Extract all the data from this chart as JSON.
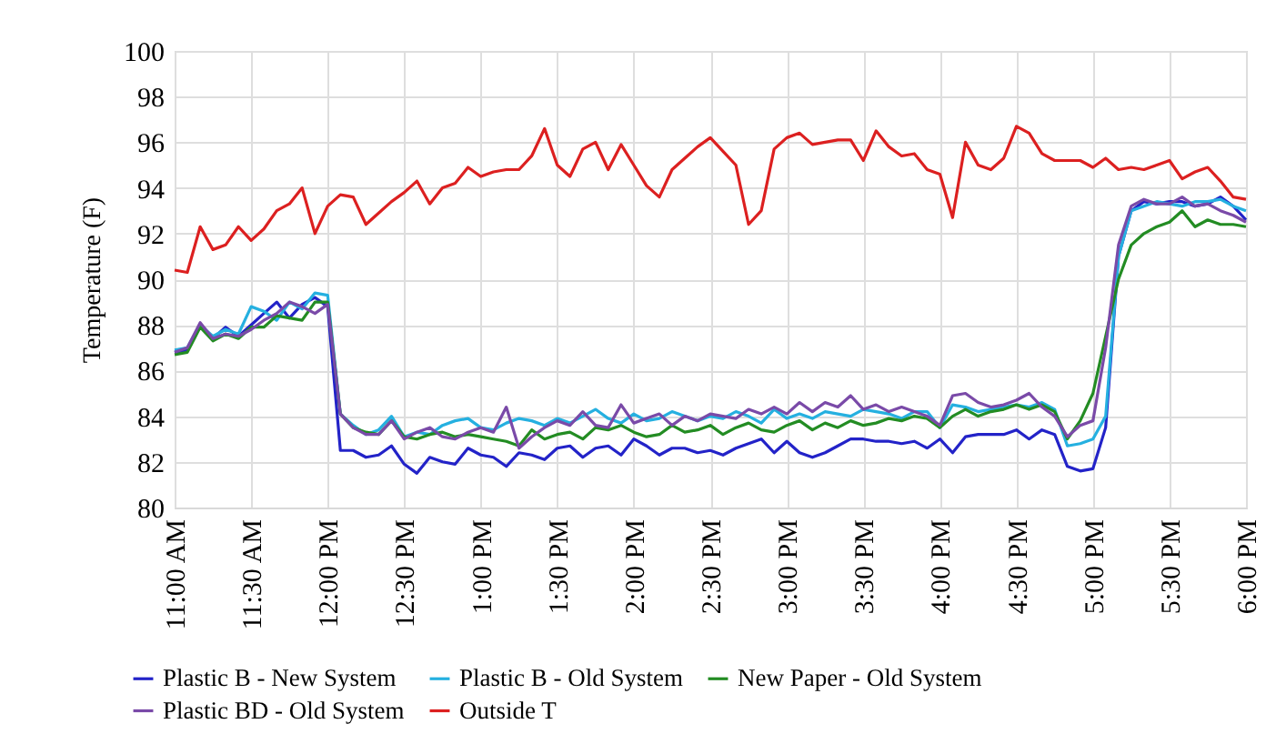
{
  "chart_data": {
    "type": "line",
    "ylabel": "Temperature (F)",
    "x": [
      11,
      11.083,
      11.167,
      11.25,
      11.333,
      11.417,
      11.5,
      11.583,
      11.667,
      11.75,
      11.833,
      11.917,
      12,
      12.083,
      12.167,
      12.25,
      12.333,
      12.417,
      12.5,
      12.583,
      12.667,
      12.75,
      12.833,
      12.917,
      13,
      13.083,
      13.167,
      13.25,
      13.333,
      13.417,
      13.5,
      13.583,
      13.667,
      13.75,
      13.833,
      13.917,
      14,
      14.083,
      14.167,
      14.25,
      14.333,
      14.417,
      14.5,
      14.583,
      14.667,
      14.75,
      14.833,
      14.917,
      15,
      15.083,
      15.167,
      15.25,
      15.333,
      15.417,
      15.5,
      15.583,
      15.667,
      15.75,
      15.833,
      15.917,
      16,
      16.083,
      16.167,
      16.25,
      16.333,
      16.417,
      16.5,
      16.583,
      16.667,
      16.75,
      16.833,
      16.917,
      17,
      17.083,
      17.167,
      17.25,
      17.333,
      17.417,
      17.5,
      17.583,
      17.667,
      17.75,
      17.833,
      17.917,
      18
    ],
    "series": [
      {
        "name": "Plastic B - New System",
        "color": "#2323c8",
        "values": [
          86.8,
          86.9,
          88.0,
          87.4,
          87.9,
          87.5,
          88.0,
          88.5,
          89.0,
          88.3,
          88.9,
          89.2,
          88.8,
          82.5,
          82.5,
          82.2,
          82.3,
          82.7,
          81.9,
          81.5,
          82.2,
          82.0,
          81.9,
          82.6,
          82.3,
          82.2,
          81.8,
          82.4,
          82.3,
          82.1,
          82.6,
          82.7,
          82.2,
          82.6,
          82.7,
          82.3,
          83.0,
          82.7,
          82.3,
          82.6,
          82.6,
          82.4,
          82.5,
          82.3,
          82.6,
          82.8,
          83.0,
          82.4,
          82.9,
          82.4,
          82.2,
          82.4,
          82.7,
          83.0,
          83.0,
          82.9,
          82.9,
          82.8,
          82.9,
          82.6,
          83.0,
          82.4,
          83.1,
          83.2,
          83.2,
          83.2,
          83.4,
          83.0,
          83.4,
          83.2,
          81.8,
          81.6,
          81.7,
          83.5,
          91.0,
          93.0,
          93.4,
          93.3,
          93.4,
          93.4,
          93.2,
          93.3,
          93.6,
          93.2,
          92.6
        ]
      },
      {
        "name": "Plastic B - Old System",
        "color": "#25b0e0",
        "values": [
          86.9,
          87.0,
          88.0,
          87.5,
          87.8,
          87.6,
          88.8,
          88.6,
          88.2,
          89.0,
          88.7,
          89.4,
          89.3,
          84.1,
          83.6,
          83.2,
          83.4,
          84.0,
          83.1,
          83.3,
          83.2,
          83.6,
          83.8,
          83.9,
          83.5,
          83.4,
          83.7,
          83.9,
          83.8,
          83.6,
          83.9,
          83.7,
          84.0,
          84.3,
          83.9,
          83.7,
          84.1,
          83.8,
          83.9,
          84.2,
          84.0,
          83.8,
          84.0,
          83.9,
          84.2,
          84.0,
          83.7,
          84.3,
          83.9,
          84.1,
          83.9,
          84.2,
          84.1,
          84.0,
          84.3,
          84.2,
          84.1,
          83.9,
          84.2,
          84.2,
          83.5,
          84.5,
          84.4,
          84.2,
          84.3,
          84.4,
          84.5,
          84.4,
          84.6,
          84.3,
          82.7,
          82.8,
          83.0,
          84.0,
          91.0,
          93.0,
          93.2,
          93.4,
          93.3,
          93.2,
          93.4,
          93.4,
          93.5,
          93.2,
          93.0
        ]
      },
      {
        "name": "New Paper - Old System",
        "color": "#238c23",
        "values": [
          86.7,
          86.8,
          87.9,
          87.3,
          87.6,
          87.4,
          87.9,
          87.9,
          88.4,
          88.3,
          88.2,
          89.0,
          89.0,
          84.1,
          83.5,
          83.3,
          83.2,
          83.8,
          83.1,
          83.0,
          83.2,
          83.3,
          83.1,
          83.2,
          83.1,
          83.0,
          82.9,
          82.7,
          83.4,
          83.0,
          83.2,
          83.3,
          83.0,
          83.5,
          83.4,
          83.6,
          83.3,
          83.1,
          83.2,
          83.6,
          83.3,
          83.4,
          83.6,
          83.2,
          83.5,
          83.7,
          83.4,
          83.3,
          83.6,
          83.8,
          83.4,
          83.7,
          83.5,
          83.8,
          83.6,
          83.7,
          83.9,
          83.8,
          84.0,
          83.9,
          83.5,
          84.0,
          84.3,
          84.0,
          84.2,
          84.3,
          84.5,
          84.3,
          84.5,
          84.2,
          83.0,
          83.8,
          85.0,
          87.5,
          90.0,
          91.5,
          92.0,
          92.3,
          92.5,
          93.0,
          92.3,
          92.6,
          92.4,
          92.4,
          92.3
        ]
      },
      {
        "name": "Plastic BD - Old System",
        "color": "#7a4aa8",
        "values": [
          86.8,
          87.0,
          88.1,
          87.4,
          87.6,
          87.5,
          87.8,
          88.2,
          88.5,
          89.0,
          88.8,
          88.5,
          88.9,
          84.1,
          83.5,
          83.2,
          83.2,
          83.8,
          83.0,
          83.3,
          83.5,
          83.1,
          83.0,
          83.3,
          83.5,
          83.3,
          84.4,
          82.6,
          83.1,
          83.5,
          83.8,
          83.6,
          84.2,
          83.6,
          83.5,
          84.5,
          83.7,
          83.9,
          84.1,
          83.6,
          84.0,
          83.8,
          84.1,
          84.0,
          83.9,
          84.3,
          84.1,
          84.4,
          84.1,
          84.6,
          84.2,
          84.6,
          84.4,
          84.9,
          84.3,
          84.5,
          84.2,
          84.4,
          84.2,
          84.0,
          83.6,
          84.9,
          85.0,
          84.6,
          84.4,
          84.5,
          84.7,
          85.0,
          84.4,
          84.0,
          83.1,
          83.6,
          83.8,
          87.0,
          91.5,
          93.2,
          93.5,
          93.3,
          93.3,
          93.6,
          93.2,
          93.3,
          93.0,
          92.8,
          92.5
        ]
      },
      {
        "name": "Outside T",
        "color": "#dc2020",
        "values": [
          90.4,
          90.3,
          92.3,
          91.3,
          91.5,
          92.3,
          91.7,
          92.2,
          93.0,
          93.3,
          94.0,
          92.0,
          93.2,
          93.7,
          93.6,
          92.4,
          92.9,
          93.4,
          93.8,
          94.3,
          93.3,
          94.0,
          94.2,
          94.9,
          94.5,
          94.7,
          94.8,
          94.8,
          95.4,
          96.6,
          95.0,
          94.5,
          95.7,
          96.0,
          94.8,
          95.9,
          95.0,
          94.1,
          93.6,
          94.8,
          95.3,
          95.8,
          96.2,
          95.6,
          95.0,
          92.4,
          93.0,
          95.7,
          96.2,
          96.4,
          95.9,
          96.0,
          96.1,
          96.1,
          95.2,
          96.5,
          95.8,
          95.4,
          95.5,
          94.8,
          94.6,
          92.7,
          96.0,
          95.0,
          94.8,
          95.3,
          96.7,
          96.4,
          95.5,
          95.2,
          95.2,
          95.2,
          94.9,
          95.3,
          94.8,
          94.9,
          94.8,
          95.0,
          95.2,
          94.4,
          94.7,
          94.9,
          94.3,
          93.6,
          93.5
        ]
      }
    ],
    "xlim": [
      11,
      18
    ],
    "xticks": [
      {
        "value": 11,
        "label": "11:00 AM"
      },
      {
        "value": 11.5,
        "label": "11:30 AM"
      },
      {
        "value": 12,
        "label": "12:00 PM"
      },
      {
        "value": 12.5,
        "label": "12:30 PM"
      },
      {
        "value": 13,
        "label": "1:00 PM"
      },
      {
        "value": 13.5,
        "label": "1:30 PM"
      },
      {
        "value": 14,
        "label": "2:00 PM"
      },
      {
        "value": 14.5,
        "label": "2:30 PM"
      },
      {
        "value": 15,
        "label": "3:00 PM"
      },
      {
        "value": 15.5,
        "label": "3:30 PM"
      },
      {
        "value": 16,
        "label": "4:00 PM"
      },
      {
        "value": 16.5,
        "label": "4:30 PM"
      },
      {
        "value": 17,
        "label": "5:00 PM"
      },
      {
        "value": 17.5,
        "label": "5:30 PM"
      },
      {
        "value": 18,
        "label": "6:00 PM"
      }
    ],
    "ylim": [
      80,
      100
    ],
    "yticks": [
      80,
      82,
      84,
      86,
      88,
      90,
      92,
      94,
      96,
      98,
      100
    ],
    "grid": true,
    "legend": "bottom",
    "marker": "none",
    "line_style": "solid"
  }
}
